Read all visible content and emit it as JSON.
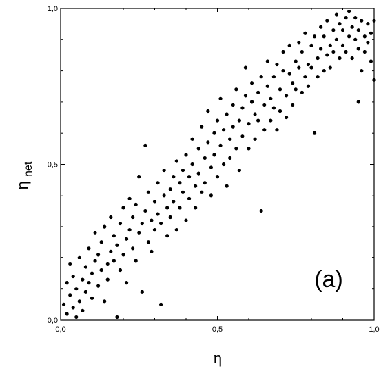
{
  "chart_data": {
    "type": "scatter",
    "title": "",
    "panel_label": "(a)",
    "xlabel": "η",
    "ylabel": {
      "main": "η",
      "sub": "net"
    },
    "xlim": [
      0,
      1
    ],
    "ylim": [
      0,
      1
    ],
    "xticks": [
      {
        "v": 0,
        "label": "0,0"
      },
      {
        "v": 0.5,
        "label": "0,5"
      },
      {
        "v": 1,
        "label": "1,0"
      }
    ],
    "yticks": [
      {
        "v": 0,
        "label": "0,0"
      },
      {
        "v": 0.5,
        "label": "0,5"
      },
      {
        "v": 1,
        "label": "1,0"
      }
    ],
    "grid": false,
    "legend": "none",
    "marker_color": "#000000",
    "series": [
      {
        "points": [
          [
            0.01,
            0.05
          ],
          [
            0.02,
            0.12
          ],
          [
            0.02,
            0.02
          ],
          [
            0.03,
            0.08
          ],
          [
            0.03,
            0.18
          ],
          [
            0.04,
            0.04
          ],
          [
            0.04,
            0.14
          ],
          [
            0.05,
            0.01
          ],
          [
            0.05,
            0.1
          ],
          [
            0.06,
            0.06
          ],
          [
            0.06,
            0.2
          ],
          [
            0.07,
            0.13
          ],
          [
            0.07,
            0.03
          ],
          [
            0.08,
            0.09
          ],
          [
            0.08,
            0.17
          ],
          [
            0.09,
            0.12
          ],
          [
            0.09,
            0.23
          ],
          [
            0.1,
            0.07
          ],
          [
            0.1,
            0.15
          ],
          [
            0.11,
            0.19
          ],
          [
            0.11,
            0.28
          ],
          [
            0.12,
            0.11
          ],
          [
            0.12,
            0.21
          ],
          [
            0.13,
            0.16
          ],
          [
            0.13,
            0.25
          ],
          [
            0.14,
            0.06
          ],
          [
            0.14,
            0.3
          ],
          [
            0.15,
            0.18
          ],
          [
            0.15,
            0.13
          ],
          [
            0.16,
            0.22
          ],
          [
            0.16,
            0.33
          ],
          [
            0.17,
            0.19
          ],
          [
            0.17,
            0.27
          ],
          [
            0.18,
            0.01
          ],
          [
            0.18,
            0.24
          ],
          [
            0.19,
            0.16
          ],
          [
            0.19,
            0.31
          ],
          [
            0.2,
            0.21
          ],
          [
            0.2,
            0.36
          ],
          [
            0.21,
            0.26
          ],
          [
            0.21,
            0.12
          ],
          [
            0.22,
            0.29
          ],
          [
            0.22,
            0.39
          ],
          [
            0.23,
            0.23
          ],
          [
            0.23,
            0.33
          ],
          [
            0.24,
            0.19
          ],
          [
            0.24,
            0.37
          ],
          [
            0.25,
            0.28
          ],
          [
            0.25,
            0.46
          ],
          [
            0.26,
            0.31
          ],
          [
            0.26,
            0.09
          ],
          [
            0.27,
            0.35
          ],
          [
            0.27,
            0.56
          ],
          [
            0.28,
            0.25
          ],
          [
            0.28,
            0.41
          ],
          [
            0.29,
            0.32
          ],
          [
            0.29,
            0.22
          ],
          [
            0.3,
            0.38
          ],
          [
            0.3,
            0.29
          ],
          [
            0.31,
            0.34
          ],
          [
            0.31,
            0.44
          ],
          [
            0.32,
            0.05
          ],
          [
            0.32,
            0.31
          ],
          [
            0.33,
            0.4
          ],
          [
            0.33,
            0.48
          ],
          [
            0.34,
            0.36
          ],
          [
            0.34,
            0.27
          ],
          [
            0.35,
            0.42
          ],
          [
            0.35,
            0.33
          ],
          [
            0.36,
            0.46
          ],
          [
            0.36,
            0.38
          ],
          [
            0.37,
            0.51
          ],
          [
            0.37,
            0.29
          ],
          [
            0.38,
            0.44
          ],
          [
            0.38,
            0.36
          ],
          [
            0.39,
            0.48
          ],
          [
            0.39,
            0.41
          ],
          [
            0.4,
            0.53
          ],
          [
            0.4,
            0.32
          ],
          [
            0.41,
            0.46
          ],
          [
            0.41,
            0.39
          ],
          [
            0.42,
            0.5
          ],
          [
            0.42,
            0.58
          ],
          [
            0.43,
            0.43
          ],
          [
            0.43,
            0.36
          ],
          [
            0.44,
            0.55
          ],
          [
            0.44,
            0.47
          ],
          [
            0.45,
            0.41
          ],
          [
            0.45,
            0.62
          ],
          [
            0.46,
            0.52
          ],
          [
            0.46,
            0.44
          ],
          [
            0.47,
            0.57
          ],
          [
            0.47,
            0.67
          ],
          [
            0.48,
            0.49
          ],
          [
            0.48,
            0.4
          ],
          [
            0.49,
            0.6
          ],
          [
            0.49,
            0.53
          ],
          [
            0.5,
            0.46
          ],
          [
            0.5,
            0.64
          ],
          [
            0.51,
            0.56
          ],
          [
            0.51,
            0.71
          ],
          [
            0.52,
            0.5
          ],
          [
            0.52,
            0.61
          ],
          [
            0.53,
            0.43
          ],
          [
            0.53,
            0.66
          ],
          [
            0.54,
            0.58
          ],
          [
            0.54,
            0.52
          ],
          [
            0.55,
            0.69
          ],
          [
            0.55,
            0.62
          ],
          [
            0.56,
            0.55
          ],
          [
            0.56,
            0.74
          ],
          [
            0.57,
            0.64
          ],
          [
            0.57,
            0.48
          ],
          [
            0.58,
            0.68
          ],
          [
            0.58,
            0.59
          ],
          [
            0.59,
            0.72
          ],
          [
            0.59,
            0.81
          ],
          [
            0.6,
            0.63
          ],
          [
            0.6,
            0.55
          ],
          [
            0.61,
            0.7
          ],
          [
            0.61,
            0.76
          ],
          [
            0.62,
            0.66
          ],
          [
            0.62,
            0.58
          ],
          [
            0.63,
            0.73
          ],
          [
            0.63,
            0.64
          ],
          [
            0.64,
            0.35
          ],
          [
            0.64,
            0.78
          ],
          [
            0.65,
            0.69
          ],
          [
            0.65,
            0.61
          ],
          [
            0.66,
            0.75
          ],
          [
            0.66,
            0.83
          ],
          [
            0.67,
            0.71
          ],
          [
            0.67,
            0.64
          ],
          [
            0.68,
            0.78
          ],
          [
            0.68,
            0.68
          ],
          [
            0.69,
            0.61
          ],
          [
            0.69,
            0.82
          ],
          [
            0.7,
            0.74
          ],
          [
            0.7,
            0.67
          ],
          [
            0.71,
            0.8
          ],
          [
            0.71,
            0.86
          ],
          [
            0.72,
            0.72
          ],
          [
            0.72,
            0.65
          ],
          [
            0.73,
            0.79
          ],
          [
            0.73,
            0.88
          ],
          [
            0.74,
            0.76
          ],
          [
            0.74,
            0.69
          ],
          [
            0.75,
            0.83
          ],
          [
            0.75,
            0.74
          ],
          [
            0.76,
            0.89
          ],
          [
            0.76,
            0.81
          ],
          [
            0.77,
            0.73
          ],
          [
            0.77,
            0.86
          ],
          [
            0.78,
            0.78
          ],
          [
            0.78,
            0.92
          ],
          [
            0.79,
            0.82
          ],
          [
            0.79,
            0.75
          ],
          [
            0.8,
            0.88
          ],
          [
            0.8,
            0.81
          ],
          [
            0.81,
            0.6
          ],
          [
            0.81,
            0.91
          ],
          [
            0.82,
            0.84
          ],
          [
            0.82,
            0.78
          ],
          [
            0.83,
            0.94
          ],
          [
            0.83,
            0.87
          ],
          [
            0.84,
            0.8
          ],
          [
            0.84,
            0.91
          ],
          [
            0.85,
            0.85
          ],
          [
            0.85,
            0.96
          ],
          [
            0.86,
            0.88
          ],
          [
            0.86,
            0.81
          ],
          [
            0.87,
            0.93
          ],
          [
            0.87,
            0.86
          ],
          [
            0.88,
            0.98
          ],
          [
            0.88,
            0.9
          ],
          [
            0.89,
            0.84
          ],
          [
            0.89,
            0.95
          ],
          [
            0.9,
            0.88
          ],
          [
            0.9,
            0.93
          ],
          [
            0.91,
            0.97
          ],
          [
            0.91,
            0.86
          ],
          [
            0.92,
            0.91
          ],
          [
            0.92,
            0.99
          ],
          [
            0.93,
            0.94
          ],
          [
            0.93,
            0.84
          ],
          [
            0.94,
            0.9
          ],
          [
            0.94,
            0.97
          ],
          [
            0.95,
            0.87
          ],
          [
            0.95,
            0.93
          ],
          [
            0.96,
            0.8
          ],
          [
            0.96,
            0.96
          ],
          [
            0.97,
            0.91
          ],
          [
            0.97,
            0.86
          ],
          [
            0.98,
            0.95
          ],
          [
            0.98,
            0.89
          ],
          [
            0.99,
            0.83
          ],
          [
            0.99,
            0.92
          ],
          [
            1.0,
            0.96
          ],
          [
            1.0,
            0.77
          ],
          [
            0.95,
            0.7
          ]
        ]
      }
    ]
  }
}
